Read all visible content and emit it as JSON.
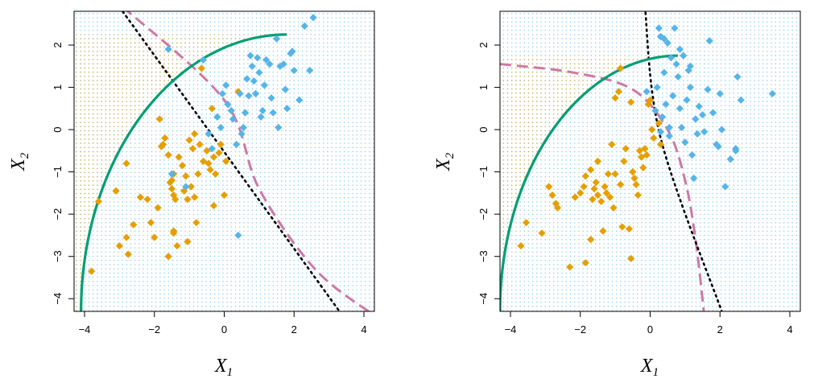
{
  "colors": {
    "class_a": "#E69F00",
    "class_b": "#56B4E9",
    "green_curve": "#009E73",
    "purple_curve": "#CC79A7",
    "black_curve": "#000000"
  },
  "chart_data": [
    {
      "type": "scatter",
      "xlabel": "X",
      "xlabel_sub": "1",
      "ylabel": "X",
      "ylabel_sub": "2",
      "xlim": [
        -4.3,
        4.3
      ],
      "ylim": [
        -4.3,
        2.8
      ],
      "x_ticks": [
        "−4",
        "−2",
        "0",
        "2",
        "4"
      ],
      "y_ticks": [
        "−4",
        "−3",
        "−2",
        "−1",
        "0",
        "1",
        "2"
      ],
      "x_tick_values": [
        -4,
        -2,
        0,
        2,
        4
      ],
      "y_tick_values": [
        -4,
        -3,
        -2,
        -1,
        0,
        1,
        2
      ],
      "grid": false,
      "series": [
        {
          "class": "a",
          "points": [
            [
              -3.8,
              -3.35
            ],
            [
              -3.6,
              -1.7
            ],
            [
              -3.1,
              -1.45
            ],
            [
              -3.0,
              -2.75
            ],
            [
              -2.8,
              -0.8
            ],
            [
              -2.8,
              -2.55
            ],
            [
              -2.75,
              -2.95
            ],
            [
              -2.6,
              -2.25
            ],
            [
              -2.4,
              -1.6
            ],
            [
              -2.2,
              -1.65
            ],
            [
              -2.1,
              -2.2
            ],
            [
              -2.0,
              -2.55
            ],
            [
              -1.9,
              -1.85
            ],
            [
              -1.85,
              0.25
            ],
            [
              -1.8,
              -0.4
            ],
            [
              -1.75,
              -0.35
            ],
            [
              -1.7,
              -0.2
            ],
            [
              -1.6,
              -0.6
            ],
            [
              -1.55,
              -1.25
            ],
            [
              -1.5,
              -1.4
            ],
            [
              -1.5,
              -1.2
            ],
            [
              -1.45,
              -1.05
            ],
            [
              -1.45,
              -1.55
            ],
            [
              -1.45,
              -2.45
            ],
            [
              -1.4,
              -1.65
            ],
            [
              -1.35,
              -2.75
            ],
            [
              -1.3,
              -0.65
            ],
            [
              -1.2,
              -0.85
            ],
            [
              -1.15,
              -1.45
            ],
            [
              -1.1,
              -1.1
            ],
            [
              -1.05,
              -1.65
            ],
            [
              -1.05,
              -2.65
            ],
            [
              -1.0,
              -0.25
            ],
            [
              -0.95,
              -1.35
            ],
            [
              -0.9,
              -0.45
            ],
            [
              -0.85,
              -1.6
            ],
            [
              -0.85,
              -0.1
            ],
            [
              -0.8,
              -2.2
            ],
            [
              -0.75,
              -1.05
            ],
            [
              -0.7,
              -0.35
            ],
            [
              -0.65,
              1.45
            ],
            [
              -0.6,
              -0.75
            ],
            [
              -0.5,
              -0.5
            ],
            [
              -0.45,
              -0.8
            ],
            [
              -0.4,
              -0.95
            ],
            [
              -0.35,
              0.5
            ],
            [
              -0.3,
              -0.65
            ],
            [
              -0.3,
              -1.8
            ],
            [
              -0.25,
              -1.05
            ],
            [
              -0.15,
              -0.55
            ],
            [
              -0.1,
              -0.35
            ],
            [
              0.0,
              -1.55
            ],
            [
              0.05,
              -0.75
            ],
            [
              -1.6,
              -3.0
            ],
            [
              -1.45,
              -2.4
            ],
            [
              0.4,
              0.9
            ]
          ]
        },
        {
          "class": "b",
          "points": [
            [
              -1.6,
              1.9
            ],
            [
              -0.6,
              1.65
            ],
            [
              -0.2,
              0.3
            ],
            [
              -0.1,
              0.05
            ],
            [
              -0.05,
              0.85
            ],
            [
              0.05,
              1.05
            ],
            [
              0.1,
              0.6
            ],
            [
              0.2,
              0.45
            ],
            [
              0.25,
              0.25
            ],
            [
              0.35,
              -0.35
            ],
            [
              0.45,
              0.85
            ],
            [
              0.5,
              -0.1
            ],
            [
              0.55,
              0.05
            ],
            [
              0.6,
              0.4
            ],
            [
              0.65,
              1.2
            ],
            [
              0.7,
              0.8
            ],
            [
              0.75,
              1.75
            ],
            [
              0.8,
              1.5
            ],
            [
              0.85,
              1.15
            ],
            [
              0.9,
              0.85
            ],
            [
              0.95,
              1.7
            ],
            [
              1.0,
              1.35
            ],
            [
              1.05,
              0.3
            ],
            [
              1.1,
              0.45
            ],
            [
              1.15,
              1.05
            ],
            [
              1.2,
              1.65
            ],
            [
              1.3,
              1.55
            ],
            [
              1.35,
              0.75
            ],
            [
              1.4,
              0.4
            ],
            [
              1.5,
              2.15
            ],
            [
              1.55,
              0.05
            ],
            [
              1.6,
              1.5
            ],
            [
              1.7,
              1.55
            ],
            [
              1.75,
              0.95
            ],
            [
              1.8,
              0.5
            ],
            [
              1.9,
              1.8
            ],
            [
              1.95,
              1.85
            ],
            [
              2.0,
              1.4
            ],
            [
              2.15,
              0.7
            ],
            [
              2.3,
              2.45
            ],
            [
              2.45,
              1.4
            ],
            [
              2.55,
              2.65
            ],
            [
              -0.35,
              -0.45
            ],
            [
              -0.45,
              -0.1
            ],
            [
              -1.1,
              -1.35
            ],
            [
              -1.5,
              -1.05
            ],
            [
              0.4,
              -2.5
            ]
          ]
        }
      ]
    },
    {
      "type": "scatter",
      "xlabel": "X",
      "xlabel_sub": "1",
      "ylabel": "X",
      "ylabel_sub": "2",
      "xlim": [
        -4.3,
        4.3
      ],
      "ylim": [
        -4.3,
        2.8
      ],
      "x_ticks": [
        "−4",
        "−2",
        "0",
        "2",
        "4"
      ],
      "y_ticks": [
        "−4",
        "−3",
        "−2",
        "−1",
        "0",
        "1",
        "2"
      ],
      "x_tick_values": [
        -4,
        -2,
        0,
        2,
        4
      ],
      "y_tick_values": [
        -4,
        -3,
        -2,
        -1,
        0,
        1,
        2
      ],
      "grid": false,
      "series": [
        {
          "class": "a",
          "points": [
            [
              -3.7,
              -2.75
            ],
            [
              -3.55,
              -2.2
            ],
            [
              -3.1,
              -2.45
            ],
            [
              -2.9,
              -1.35
            ],
            [
              -2.8,
              -1.55
            ],
            [
              -2.7,
              -1.75
            ],
            [
              -2.65,
              -1.85
            ],
            [
              -2.3,
              -3.25
            ],
            [
              -2.15,
              -1.6
            ],
            [
              -2.0,
              -1.5
            ],
            [
              -1.9,
              -1.35
            ],
            [
              -1.85,
              -1.1
            ],
            [
              -1.85,
              -3.15
            ],
            [
              -1.7,
              -2.6
            ],
            [
              -1.7,
              -0.95
            ],
            [
              -1.65,
              -1.65
            ],
            [
              -1.6,
              -1.4
            ],
            [
              -1.55,
              -1.25
            ],
            [
              -1.5,
              -0.75
            ],
            [
              -1.5,
              -1.55
            ],
            [
              -1.4,
              -1.7
            ],
            [
              -1.35,
              -2.4
            ],
            [
              -1.3,
              -1.35
            ],
            [
              -1.25,
              -1.5
            ],
            [
              -1.2,
              -1.05
            ],
            [
              -1.15,
              -1.6
            ],
            [
              -1.1,
              -0.35
            ],
            [
              -1.05,
              -1.85
            ],
            [
              -1.0,
              -1.05
            ],
            [
              -0.85,
              -1.3
            ],
            [
              -0.8,
              -2.3
            ],
            [
              -0.75,
              -0.75
            ],
            [
              -0.7,
              -0.45
            ],
            [
              -0.6,
              -2.35
            ],
            [
              -0.55,
              -3.05
            ],
            [
              -0.5,
              -1.0
            ],
            [
              -0.45,
              -1.15
            ],
            [
              -0.4,
              -1.3
            ],
            [
              -0.35,
              -1.55
            ],
            [
              -0.3,
              -0.5
            ],
            [
              -0.25,
              -0.65
            ],
            [
              -0.2,
              -0.9
            ],
            [
              -0.15,
              -0.45
            ],
            [
              -0.1,
              -0.6
            ],
            [
              -0.05,
              0.6
            ],
            [
              0.0,
              0.7
            ],
            [
              0.05,
              0.0
            ],
            [
              0.1,
              -0.2
            ],
            [
              -0.85,
              1.45
            ],
            [
              -1.0,
              0.75
            ],
            [
              0.25,
              0.15
            ],
            [
              -0.9,
              0.9
            ],
            [
              -0.55,
              0.65
            ],
            [
              0.3,
              -0.35
            ]
          ]
        },
        {
          "class": "b",
          "points": [
            [
              -0.1,
              0.9
            ],
            [
              0.15,
              0.45
            ],
            [
              0.2,
              1.0
            ],
            [
              0.25,
              2.4
            ],
            [
              0.3,
              2.2
            ],
            [
              0.35,
              0.3
            ],
            [
              0.4,
              1.35
            ],
            [
              0.45,
              0.6
            ],
            [
              0.5,
              2.05
            ],
            [
              0.55,
              -0.15
            ],
            [
              0.55,
              0.05
            ],
            [
              0.6,
              1.7
            ],
            [
              0.65,
              0.8
            ],
            [
              0.7,
              2.4
            ],
            [
              0.75,
              1.55
            ],
            [
              0.8,
              1.25
            ],
            [
              0.85,
              0.5
            ],
            [
              0.9,
              0.05
            ],
            [
              0.95,
              1.75
            ],
            [
              1.0,
              -0.3
            ],
            [
              1.05,
              0.7
            ],
            [
              1.1,
              1.4
            ],
            [
              1.15,
              1.0
            ],
            [
              1.2,
              -0.6
            ],
            [
              1.25,
              -1.15
            ],
            [
              1.3,
              0.25
            ],
            [
              1.35,
              -0.1
            ],
            [
              1.4,
              0.55
            ],
            [
              1.5,
              0.35
            ],
            [
              1.55,
              -0.05
            ],
            [
              1.65,
              0.95
            ],
            [
              1.7,
              2.1
            ],
            [
              1.8,
              0.4
            ],
            [
              1.9,
              -0.35
            ],
            [
              1.95,
              -0.4
            ],
            [
              2.0,
              0.85
            ],
            [
              2.05,
              0.0
            ],
            [
              2.15,
              -1.35
            ],
            [
              2.3,
              -0.7
            ],
            [
              2.45,
              -0.5
            ],
            [
              2.5,
              1.25
            ],
            [
              2.6,
              0.7
            ],
            [
              3.5,
              0.85
            ],
            [
              0.4,
              2.15
            ],
            [
              0.85,
              1.9
            ],
            [
              1.15,
              1.5
            ],
            [
              2.45,
              -0.45
            ],
            [
              0.3,
              -0.05
            ]
          ]
        }
      ]
    }
  ]
}
